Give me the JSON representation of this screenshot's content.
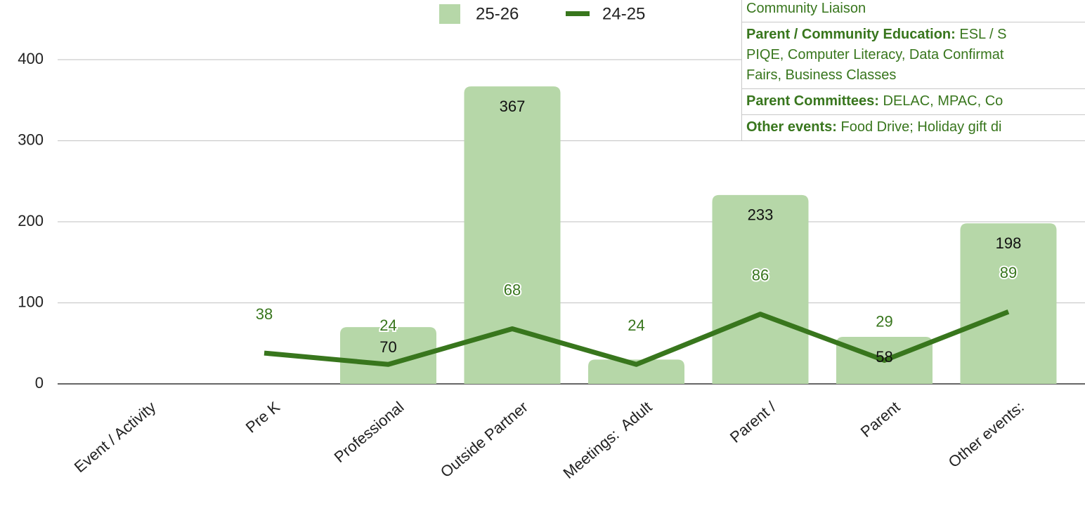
{
  "chart_data": {
    "type": "bar_line",
    "categories": [
      "Event / Activity",
      "Pre K",
      "Professional",
      "Outside Partner",
      "Meetings:  Adult",
      "Parent /",
      "Parent",
      "Other events:"
    ],
    "series": [
      {
        "name": "25-26",
        "color": "#b6d7a8",
        "kind": "bar",
        "values": [
          null,
          null,
          70,
          367,
          30,
          233,
          58,
          198
        ],
        "value_labels": [
          null,
          null,
          "70",
          "367",
          null,
          "233",
          "58",
          "198"
        ]
      },
      {
        "name": "24-25",
        "color": "#38761d",
        "kind": "line",
        "values": [
          null,
          38,
          24,
          68,
          24,
          86,
          29,
          89
        ]
      }
    ],
    "ylim": [
      0,
      400
    ],
    "yticks": [
      0,
      100,
      200,
      300,
      400
    ],
    "grid": true,
    "legend": "top"
  },
  "table": {
    "rows": [
      {
        "label": null,
        "text": "Community Liaison"
      },
      {
        "label": "Parent / Community Education:",
        "text": " ESL / S\nPIQE, Computer Literacy, Data Confirmat\nFairs, Business Classes"
      },
      {
        "label": "Parent Committees:",
        "text": " DELAC, MPAC, Co"
      },
      {
        "label": "Other events:",
        "text": " Food Drive; Holiday gift di"
      }
    ]
  }
}
